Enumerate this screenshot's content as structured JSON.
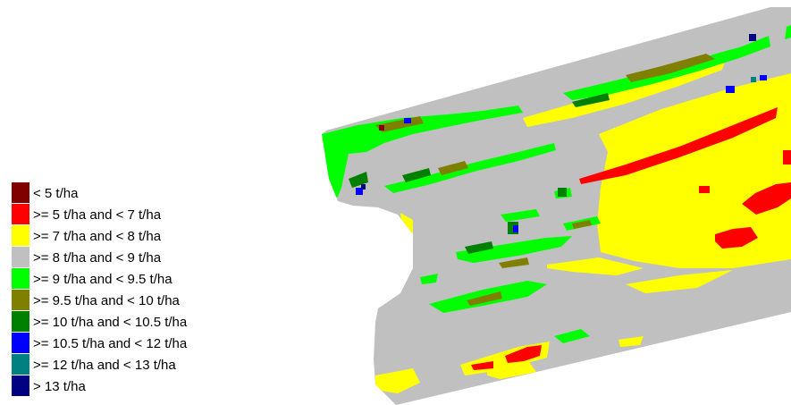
{
  "legend": {
    "items": [
      {
        "label": "< 5 t/ha",
        "color": "#800000"
      },
      {
        "label": ">= 5 t/ha and < 7 t/ha",
        "color": "#ff0000"
      },
      {
        "label": ">= 7 t/ha and < 8 t/ha",
        "color": "#ffff00"
      },
      {
        "label": ">= 8 t/ha and < 9 t/ha",
        "color": "#c0c0c0"
      },
      {
        "label": ">= 9 t/ha and < 9.5 t/ha",
        "color": "#00ff00"
      },
      {
        "label": ">= 9.5 t/ha and < 10 t/ha",
        "color": "#808000"
      },
      {
        "label": ">= 10 t/ha and < 10.5 t/ha",
        "color": "#008000"
      },
      {
        "label": ">= 10.5 t/ha and < 12 t/ha",
        "color": "#0000ff"
      },
      {
        "label": ">= 12 t/ha and < 13 t/ha",
        "color": "#008080"
      },
      {
        "label": "> 13 t/ha",
        "color": "#000080"
      }
    ]
  }
}
